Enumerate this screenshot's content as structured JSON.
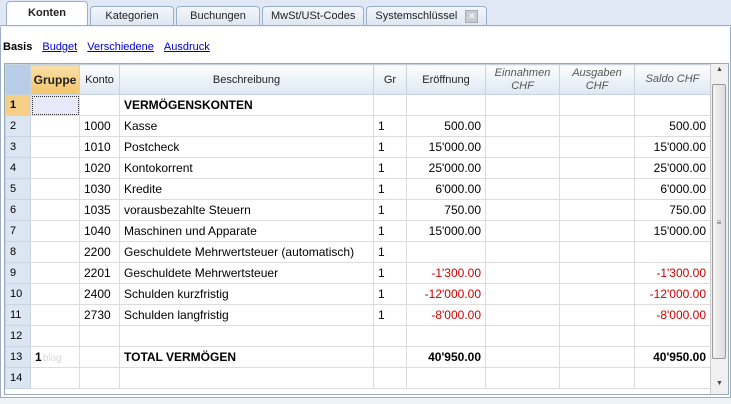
{
  "tabs": [
    {
      "label": "Konten",
      "active": true
    },
    {
      "label": "Kategorien"
    },
    {
      "label": "Buchungen"
    },
    {
      "label": "MwSt/USt-Codes"
    },
    {
      "label": "Systemschlüssel"
    }
  ],
  "subviews": {
    "active": "Basis",
    "links": [
      "Budget",
      "Verschiedene",
      "Ausdruck"
    ]
  },
  "columns": {
    "gruppe": "Gruppe",
    "konto": "Konto",
    "beschreibung": "Beschreibung",
    "gr": "Gr",
    "eroeffnung": "Eröffnung",
    "einnahmen": "Einnahmen CHF",
    "ausgaben": "Ausgaben CHF",
    "saldo": "Saldo CHF"
  },
  "rows": [
    {
      "n": "1",
      "gruppe": "",
      "konto": "",
      "beschreibung": "VERMÖGENSKONTEN",
      "gr": "",
      "eroeffnung": "",
      "einnahmen": "",
      "ausgaben": "",
      "saldo": "",
      "bold": true
    },
    {
      "n": "2",
      "gruppe": "",
      "konto": "1000",
      "beschreibung": "Kasse",
      "gr": "1",
      "eroeffnung": "500.00",
      "einnahmen": "",
      "ausgaben": "",
      "saldo": "500.00"
    },
    {
      "n": "3",
      "gruppe": "",
      "konto": "1010",
      "beschreibung": "Postcheck",
      "gr": "1",
      "eroeffnung": "15'000.00",
      "einnahmen": "",
      "ausgaben": "",
      "saldo": "15'000.00"
    },
    {
      "n": "4",
      "gruppe": "",
      "konto": "1020",
      "beschreibung": "Kontokorrent",
      "gr": "1",
      "eroeffnung": "25'000.00",
      "einnahmen": "",
      "ausgaben": "",
      "saldo": "25'000.00"
    },
    {
      "n": "5",
      "gruppe": "",
      "konto": "1030",
      "beschreibung": "Kredite",
      "gr": "1",
      "eroeffnung": "6'000.00",
      "einnahmen": "",
      "ausgaben": "",
      "saldo": "6'000.00"
    },
    {
      "n": "6",
      "gruppe": "",
      "konto": "1035",
      "beschreibung": "vorausbezahlte Steuern",
      "gr": "1",
      "eroeffnung": "750.00",
      "einnahmen": "",
      "ausgaben": "",
      "saldo": "750.00"
    },
    {
      "n": "7",
      "gruppe": "",
      "konto": "1040",
      "beschreibung": "Maschinen und Apparate",
      "gr": "1",
      "eroeffnung": "15'000.00",
      "einnahmen": "",
      "ausgaben": "",
      "saldo": "15'000.00"
    },
    {
      "n": "8",
      "gruppe": "",
      "konto": "2200",
      "beschreibung": "Geschuldete Mehrwertsteuer (automatisch)",
      "gr": "1",
      "eroeffnung": "",
      "einnahmen": "",
      "ausgaben": "",
      "saldo": ""
    },
    {
      "n": "9",
      "gruppe": "",
      "konto": "2201",
      "beschreibung": "Geschuldete Mehrwertsteuer",
      "gr": "1",
      "eroeffnung": "-1'300.00",
      "einnahmen": "",
      "ausgaben": "",
      "saldo": "-1'300.00",
      "neg": true
    },
    {
      "n": "10",
      "gruppe": "",
      "konto": "2400",
      "beschreibung": "Schulden kurzfristig",
      "gr": "1",
      "eroeffnung": "-12'000.00",
      "einnahmen": "",
      "ausgaben": "",
      "saldo": "-12'000.00",
      "neg": true
    },
    {
      "n": "11",
      "gruppe": "",
      "konto": "2730",
      "beschreibung": "Schulden langfristig",
      "gr": "1",
      "eroeffnung": "-8'000.00",
      "einnahmen": "",
      "ausgaben": "",
      "saldo": "-8'000.00",
      "neg": true
    },
    {
      "n": "12",
      "gruppe": "",
      "konto": "",
      "beschreibung": "",
      "gr": "",
      "eroeffnung": "",
      "einnahmen": "",
      "ausgaben": "",
      "saldo": ""
    },
    {
      "n": "13",
      "gruppe": "1",
      "konto": "",
      "beschreibung": "TOTAL VERMÖGEN",
      "gr": "",
      "eroeffnung": "40'950.00",
      "einnahmen": "",
      "ausgaben": "",
      "saldo": "40'950.00",
      "bold": true
    },
    {
      "n": "14",
      "gruppe": "",
      "konto": "",
      "beschreibung": "",
      "gr": "",
      "eroeffnung": "",
      "einnahmen": "",
      "ausgaben": "",
      "saldo": ""
    }
  ],
  "watermark": "blog"
}
